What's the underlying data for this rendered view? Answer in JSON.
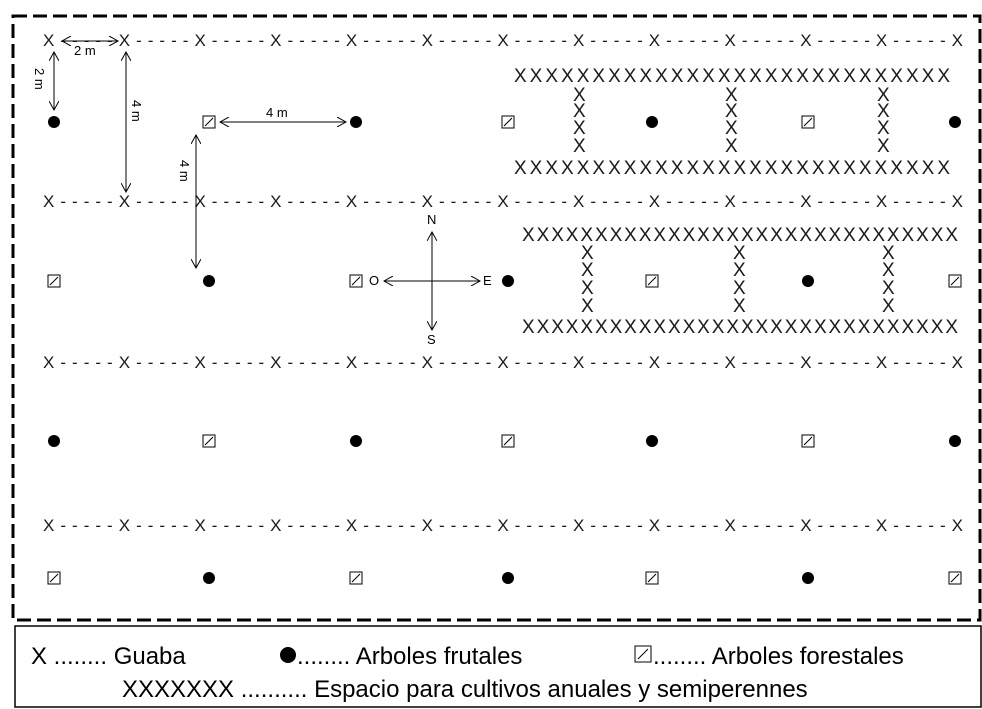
{
  "legend": {
    "guaba": "X ........ Guaba",
    "frutales": "........ Arboles frutales",
    "forestales": "........ Arboles forestales",
    "cultivos": "XXXXXXX .......... Espacio para cultivos anuales y semiperennes"
  },
  "measurements": {
    "horizontal_2m": "2 m",
    "vertical_2m": "2 m",
    "vertical_4m_a": "4 m",
    "horizontal_4m": "4 m",
    "vertical_4m_b": "4 m"
  },
  "compass": {
    "north": "N",
    "south": "S",
    "east": "E",
    "west": "O"
  },
  "guaba_row_text": "X-----X-----X-----X-----X-----X-----X-----X-----X-----X-----X-----X-----X",
  "xblock_long": "XXXXXXXXXXXXXXXXXXXXXXXXXXXX",
  "xblock_long2": "XXXXXXXXXXXXXXXXXXXXXXXXXXXXXX",
  "xblock_single": "X",
  "icons": {
    "guaba": "x-glyph",
    "frutal": "filled-circle-icon",
    "forestal": "hatched-square-icon"
  }
}
